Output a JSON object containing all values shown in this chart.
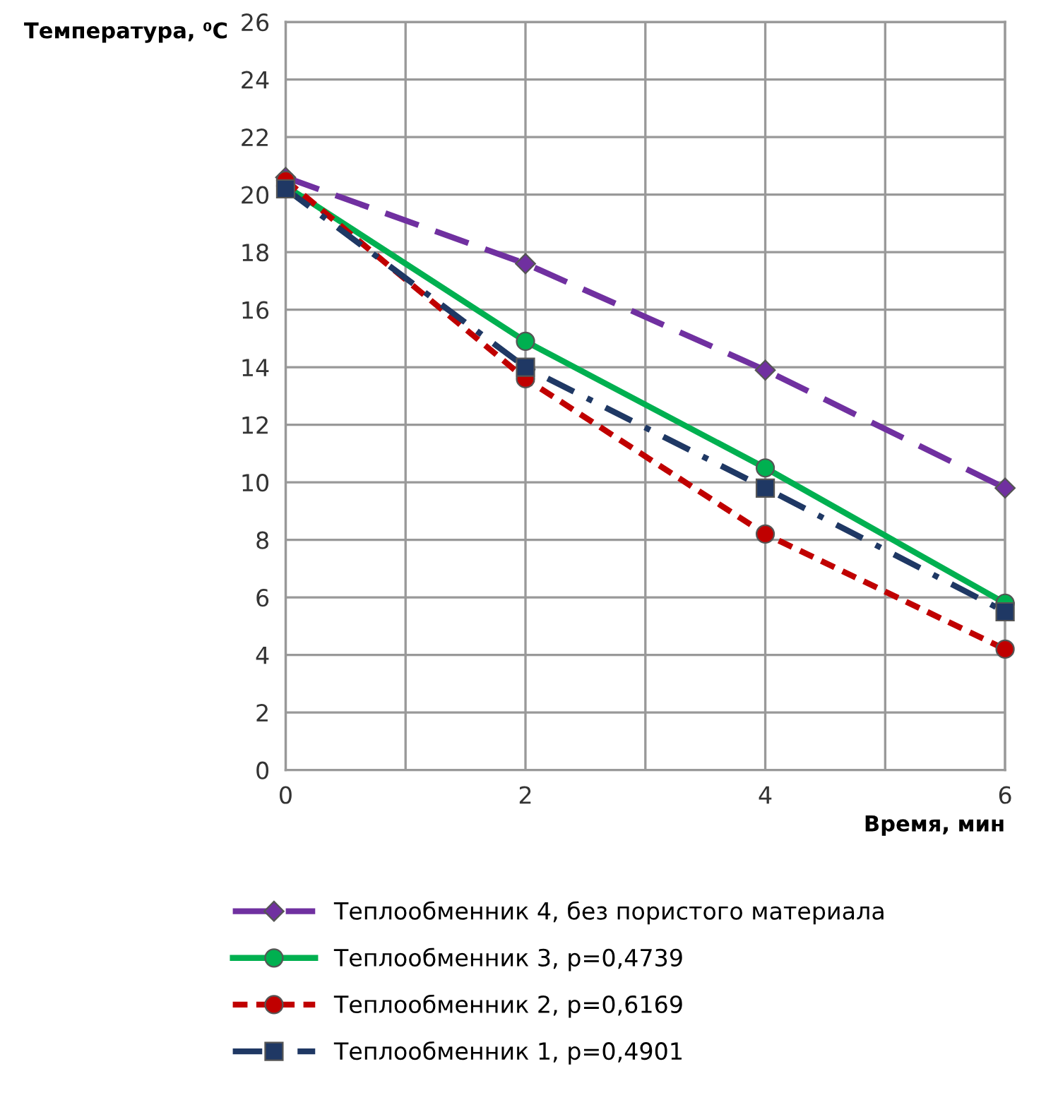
{
  "chart_data": {
    "type": "line",
    "ylabel": "Температура, ⁰C",
    "xlabel": "Время, мин",
    "x": [
      0,
      2,
      4,
      6
    ],
    "xlim": [
      0,
      6
    ],
    "xticks": [
      0,
      {
        "value": 1,
        "label": null
      },
      2,
      {
        "value": 3,
        "label": null
      },
      4,
      {
        "value": 5,
        "label": null
      },
      6
    ],
    "ylim": [
      0,
      26
    ],
    "yticks": [
      0,
      2,
      4,
      6,
      8,
      10,
      12,
      14,
      16,
      18,
      20,
      22,
      24,
      26
    ],
    "grid": true,
    "legend": "bottom",
    "series": [
      {
        "name": "Теплообменник 4, без пористого материала",
        "color": "#7030a0",
        "marker": "diamond",
        "line_style": "dashed",
        "values": [
          20.6,
          17.6,
          13.9,
          9.8
        ]
      },
      {
        "name": "Теплообменник 3, p=0,4739",
        "color": "#00b050",
        "marker": "circle",
        "line_style": "solid",
        "values": [
          20.3,
          14.9,
          10.5,
          5.8
        ]
      },
      {
        "name": "Теплообменник 2, p=0,6169",
        "color": "#c00000",
        "marker": "circle",
        "line_style": "dotted",
        "values": [
          20.5,
          13.6,
          8.2,
          4.2
        ]
      },
      {
        "name": "Теплообменник 1, p=0,4901",
        "color": "#1f3864",
        "marker": "square",
        "line_style": "dashdot",
        "values": [
          20.2,
          14.0,
          9.8,
          5.5
        ]
      }
    ]
  }
}
